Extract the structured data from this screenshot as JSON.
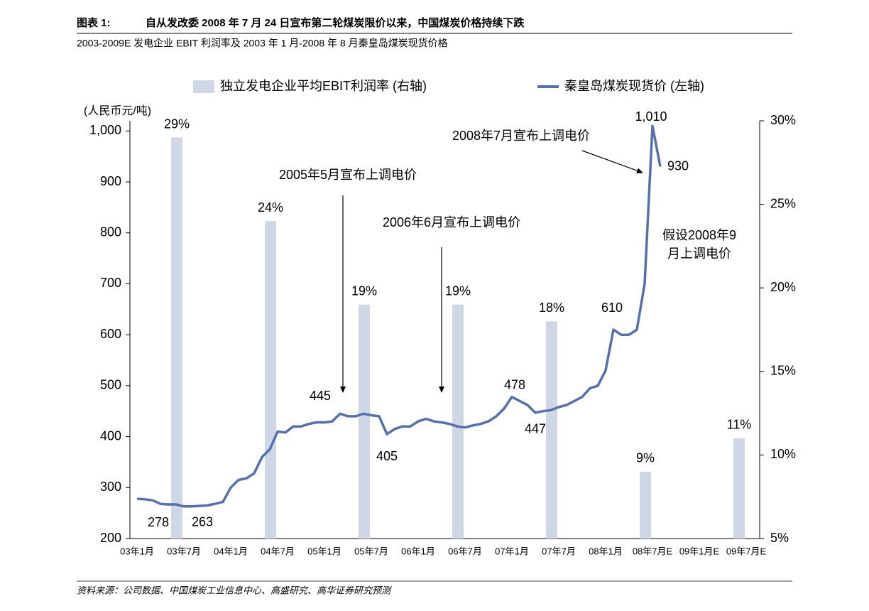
{
  "chart_data": {
    "type": "combo",
    "figure_label": "图表 1:",
    "title": "自从发改委 2008 年 7 月 24 日宣布第二轮煤炭限价以来，中国煤炭价格持续下跌",
    "subtitle": "2003-2009E 发电企业 EBIT 利润率及 2003 年 1 月-2008 年 8 月秦皇岛煤炭现货价格",
    "source": "资料来源：公司数据、中国煤炭工业信息中心、高盛研究、高华证券研究预测",
    "y_label": "(人民币元/吨)",
    "categories": [
      "03年1月",
      "03年7月",
      "04年1月",
      "04年7月",
      "05年1月",
      "05年7月",
      "06年1月",
      "06年7月",
      "07年1月",
      "07年7月",
      "08年1月",
      "08年7月E",
      "09年1月E",
      "09年7月E"
    ],
    "ylim": [
      200,
      1020
    ],
    "yticks": [
      200,
      300,
      400,
      500,
      600,
      700,
      800,
      900,
      {
        "value": 1000,
        "label": "1,000"
      }
    ],
    "y2lim": [
      5,
      30
    ],
    "y2ticks": [
      {
        "value": 5,
        "label": "5%"
      },
      {
        "value": 10,
        "label": "10%"
      },
      {
        "value": 15,
        "label": "15%"
      },
      {
        "value": 20,
        "label": "20%"
      },
      {
        "value": 25,
        "label": "25%"
      },
      {
        "value": 30,
        "label": "30%"
      }
    ],
    "series": [
      {
        "name": "独立发电企业平均EBIT利润率 (右轴)",
        "type": "bar",
        "axis": "y2",
        "color": "#cfd6e6",
        "values": [
          null,
          29,
          null,
          24,
          null,
          19,
          null,
          19,
          null,
          18,
          null,
          9,
          null,
          11
        ],
        "value_labels": [
          null,
          "29%",
          null,
          "24%",
          null,
          "19%",
          null,
          "19%",
          null,
          "18%",
          null,
          "9%",
          null,
          "11%"
        ]
      },
      {
        "name": "秦皇岛煤炭现货价 (左轴)",
        "type": "line",
        "color": "#5570b0",
        "x": [
          "03年1月",
          "03年2月",
          "03年3月",
          "03年4月",
          "03年5月",
          "03年6月",
          "03年7月",
          "03年8月",
          "03年9月",
          "03年10月",
          "03年11月",
          "03年12月",
          "04年1月",
          "04年2月",
          "04年3月",
          "04年4月",
          "04年5月",
          "04年6月",
          "04年7月",
          "04年8月",
          "04年9月",
          "04年10月",
          "04年11月",
          "04年12月",
          "05年1月",
          "05年2月",
          "05年3月",
          "05年4月",
          "05年5月",
          "05年6月",
          "05年7月",
          "05年8月",
          "05年9月",
          "05年10月",
          "05年11月",
          "05年12月",
          "06年1月",
          "06年2月",
          "06年3月",
          "06年4月",
          "06年5月",
          "06年6月",
          "06年7月",
          "06年8月",
          "06年9月",
          "06年10月",
          "06年11月",
          "06年12月",
          "07年1月",
          "07年2月",
          "07年3月",
          "07年4月",
          "07年5月",
          "07年6月",
          "07年7月",
          "07年8月",
          "07年9月",
          "07年10月",
          "07年11月",
          "07年12月",
          "08年1月",
          "08年2月",
          "08年3月",
          "08年4月",
          "08年5月",
          "08年6月",
          "08年7月",
          "08年8月"
        ],
        "values": [
          278,
          277,
          275,
          268,
          267,
          267,
          263,
          263,
          264,
          265,
          268,
          272,
          300,
          315,
          318,
          328,
          360,
          375,
          410,
          408,
          420,
          420,
          425,
          428,
          428,
          430,
          445,
          440,
          440,
          445,
          442,
          440,
          405,
          415,
          420,
          420,
          430,
          435,
          430,
          428,
          425,
          420,
          418,
          422,
          425,
          430,
          440,
          455,
          478,
          470,
          462,
          447,
          450,
          452,
          458,
          462,
          470,
          478,
          495,
          500,
          530,
          610,
          600,
          600,
          610,
          700,
          1010,
          930
        ],
        "value_labels": [
          null,
          null,
          null,
          null,
          null,
          null,
          null,
          null,
          null,
          null,
          null,
          null,
          null,
          null,
          null,
          null,
          null,
          null,
          null,
          null,
          null,
          null,
          null,
          null,
          null,
          null,
          null,
          null,
          null,
          null,
          null,
          null,
          null,
          null,
          null,
          null,
          null,
          null,
          null,
          null,
          null,
          null,
          null,
          null,
          null,
          null,
          null,
          null,
          null,
          null,
          null,
          null,
          null,
          null,
          null,
          null,
          null,
          null,
          null,
          null,
          null,
          null,
          null,
          null,
          null,
          null,
          "1,010",
          null
        ]
      }
    ],
    "annotations": [
      {
        "text": "2005年5月宣布上调电价"
      },
      {
        "text": "2006年6月宣布上调电价"
      },
      {
        "text": "2008年7月宣布上调电价"
      },
      {
        "text": [
          "假设2008年9",
          "月上调电价"
        ]
      }
    ]
  }
}
